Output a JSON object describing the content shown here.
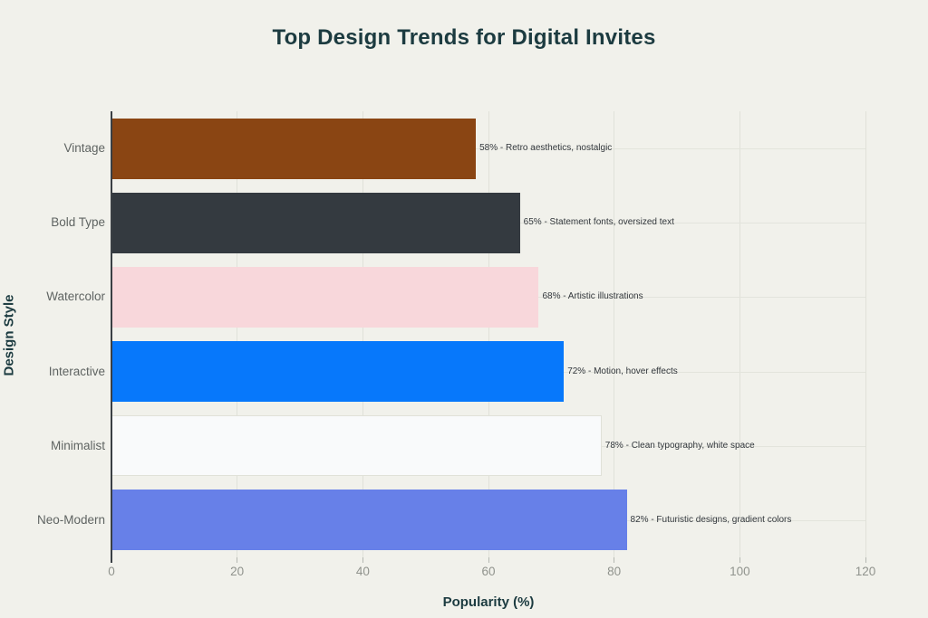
{
  "chart_data": {
    "type": "bar",
    "orientation": "horizontal",
    "title": "Top Design Trends for Digital Invites",
    "xlabel": "Popularity (%)",
    "ylabel": "Design Style",
    "xlim": [
      0,
      120
    ],
    "xticks": [
      0,
      20,
      40,
      60,
      80,
      100,
      120
    ],
    "grid": true,
    "legend": false,
    "categories": [
      "Vintage",
      "Bold Type",
      "Watercolor",
      "Interactive",
      "Minimalist",
      "Neo-Modern"
    ],
    "values": [
      58,
      65,
      68,
      72,
      78,
      82
    ],
    "bar_colors": [
      "#8A4513",
      "#343A40",
      "#F8D7DB",
      "#0778FB",
      "#F9FAFB",
      "#6780E8"
    ],
    "annotations": [
      "58% - Retro aesthetics, nostalgic",
      "65% - Statement fonts, oversized text",
      "68% - Artistic illustrations",
      "72% - Motion, hover effects",
      "78% - Clean typography, white space",
      "82% - Futuristic designs, gradient colors"
    ]
  },
  "colors": {
    "background": "#F1F1EB",
    "heading_text": "#1C3B40",
    "axis_line": "#3A3F44",
    "gridline": "#E0E1D9",
    "category_label": "#5F6462",
    "tick_label": "#90938D",
    "annotation_text": "#33383D"
  }
}
